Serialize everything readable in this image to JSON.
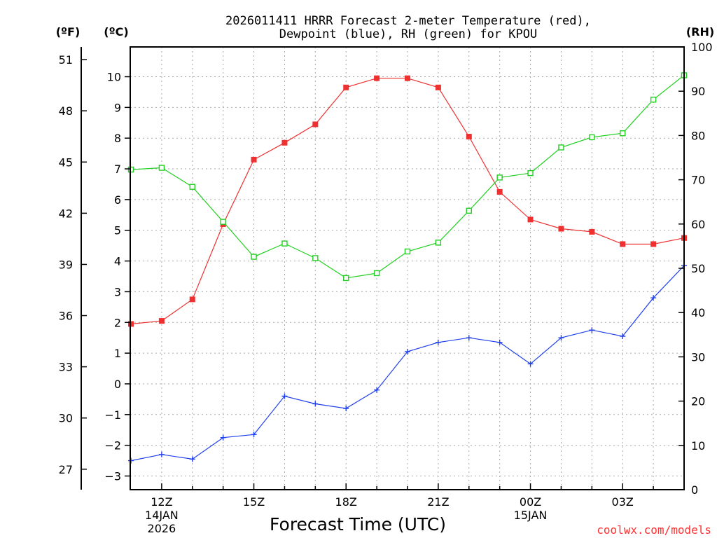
{
  "chart_data": {
    "type": "line",
    "title": "2026011411 HRRR Forecast 2-meter Temperature (red),",
    "subtitle": "Dewpoint (blue), RH (green) for KPOU",
    "xlabel": "Forecast Time (UTC)",
    "left_unit_f": "(ºF)",
    "left_unit_c": "(ºC)",
    "right_unit": "(RH)",
    "credit": "coolwx.com/models",
    "x_hours": [
      11,
      12,
      13,
      14,
      15,
      16,
      17,
      18,
      19,
      20,
      21,
      22,
      23,
      24,
      25,
      26,
      27,
      28,
      29
    ],
    "x_ticks": [
      {
        "hour": 12,
        "label": "12Z",
        "sub1": "14JAN",
        "sub2": "2026"
      },
      {
        "hour": 15,
        "label": "15Z",
        "sub1": "",
        "sub2": ""
      },
      {
        "hour": 18,
        "label": "18Z",
        "sub1": "",
        "sub2": ""
      },
      {
        "hour": 21,
        "label": "21Z",
        "sub1": "",
        "sub2": ""
      },
      {
        "hour": 24,
        "label": "00Z",
        "sub1": "15JAN",
        "sub2": ""
      },
      {
        "hour": 27,
        "label": "03Z",
        "sub1": "",
        "sub2": ""
      }
    ],
    "xlim": [
      11,
      29
    ],
    "celsius_ticks": [
      10,
      9,
      8,
      7,
      6,
      5,
      4,
      3,
      2,
      1,
      0,
      -1,
      -2,
      -3
    ],
    "celsius_labels": [
      "10",
      "9",
      "8",
      "7",
      "6",
      "5",
      "4",
      "3",
      "2",
      "1",
      "0",
      "−1",
      "−2",
      "−3"
    ],
    "fahrenheit_ticks": [
      51,
      48,
      45,
      42,
      39,
      36,
      33,
      30,
      27
    ],
    "rh_ticks": [
      100,
      90,
      80,
      70,
      60,
      50,
      40,
      30,
      20,
      10,
      0
    ],
    "ylim_c": [
      -3.4,
      10.4
    ],
    "ylim_rh": [
      0,
      100
    ],
    "series": [
      {
        "name": "Temperature",
        "unit": "C",
        "color": "#ee3030",
        "marker": "filled-square",
        "values": [
          1.95,
          2.05,
          2.75,
          5.2,
          7.3,
          7.85,
          8.45,
          9.65,
          9.95,
          9.95,
          9.65,
          8.05,
          6.25,
          5.35,
          5.05,
          4.95,
          4.55,
          4.55,
          4.75
        ]
      },
      {
        "name": "Dewpoint",
        "unit": "C",
        "color": "#2040ee",
        "marker": "plus",
        "values": [
          -2.5,
          -2.3,
          -2.45,
          -1.75,
          -1.65,
          -0.4,
          -0.65,
          -0.8,
          -0.2,
          1.05,
          1.35,
          1.5,
          1.35,
          0.65,
          1.5,
          1.75,
          1.55,
          2.8,
          3.85
        ]
      },
      {
        "name": "RH",
        "unit": "%",
        "color": "#20d020",
        "marker": "open-square",
        "values": [
          72.3,
          72.7,
          68.4,
          60.5,
          52.6,
          55.6,
          52.3,
          47.8,
          48.9,
          53.8,
          55.8,
          63.0,
          70.5,
          71.5,
          77.3,
          79.6,
          80.5,
          88.1,
          93.6
        ]
      }
    ]
  }
}
